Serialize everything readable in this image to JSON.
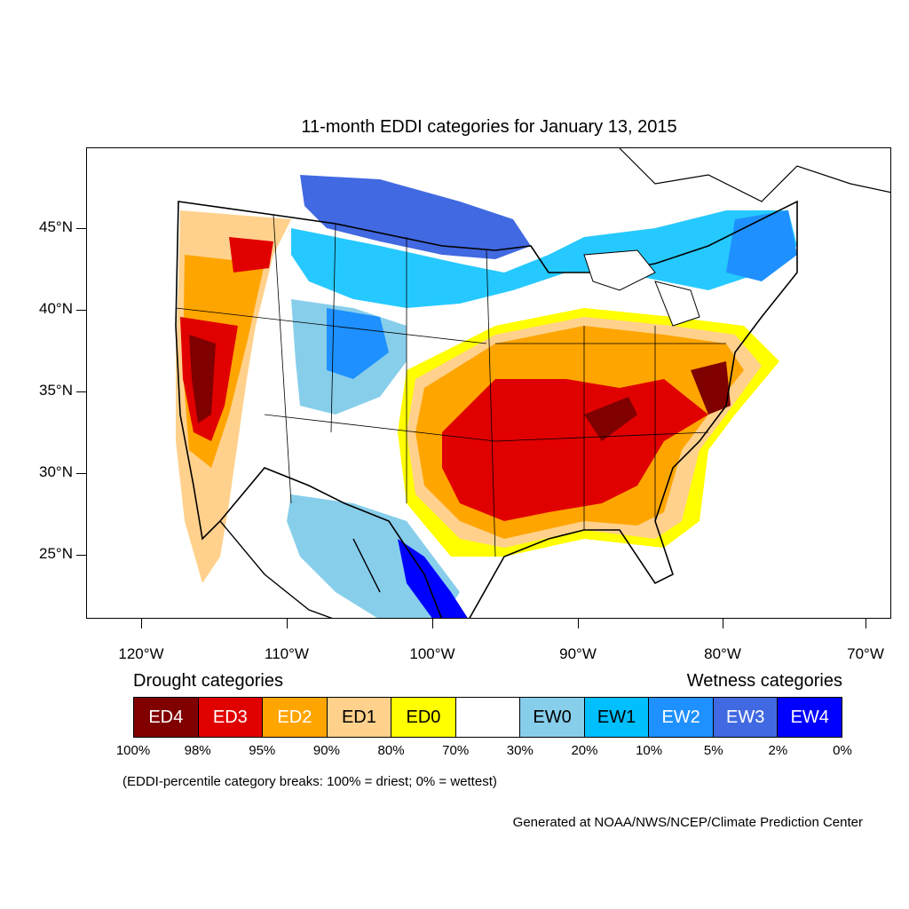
{
  "title": "11-month EDDI categories for January 13, 2015",
  "axes": {
    "lat_labels": [
      "45°N",
      "40°N",
      "35°N",
      "30°N",
      "25°N"
    ],
    "lon_labels": [
      "120°W",
      "110°W",
      "100°W",
      "90°W",
      "80°W",
      "70°W"
    ]
  },
  "legend": {
    "drought_heading": "Drought categories",
    "wetness_heading": "Wetness categories",
    "categories": [
      {
        "label": "ED4",
        "color": "#800000",
        "text_color": "#ffffff"
      },
      {
        "label": "ED3",
        "color": "#e10000",
        "text_color": "#ffffff"
      },
      {
        "label": "ED2",
        "color": "#ffa500",
        "text_color": "#ffffff"
      },
      {
        "label": "ED1",
        "color": "#ffd18c",
        "text_color": "#000000"
      },
      {
        "label": "ED0",
        "color": "#ffff00",
        "text_color": "#000000"
      },
      {
        "label": "",
        "color": "#ffffff",
        "text_color": "#000000"
      },
      {
        "label": "EW0",
        "color": "#87ceeb",
        "text_color": "#000000"
      },
      {
        "label": "EW1",
        "color": "#00bfff",
        "text_color": "#000000"
      },
      {
        "label": "EW2",
        "color": "#1e90ff",
        "text_color": "#ffffff"
      },
      {
        "label": "EW3",
        "color": "#4169e1",
        "text_color": "#ffffff"
      },
      {
        "label": "EW4",
        "color": "#0000ff",
        "text_color": "#ffffff"
      }
    ],
    "breaks": [
      "100%",
      "98%",
      "95%",
      "90%",
      "80%",
      "70%",
      "30%",
      "20%",
      "10%",
      "5%",
      "2%",
      "0%"
    ]
  },
  "note": "(EDDI-percentile category breaks: 100% = driest; 0% = wettest)",
  "credit": "Generated at NOAA/NWS/NCEP/Climate Prediction Center"
}
